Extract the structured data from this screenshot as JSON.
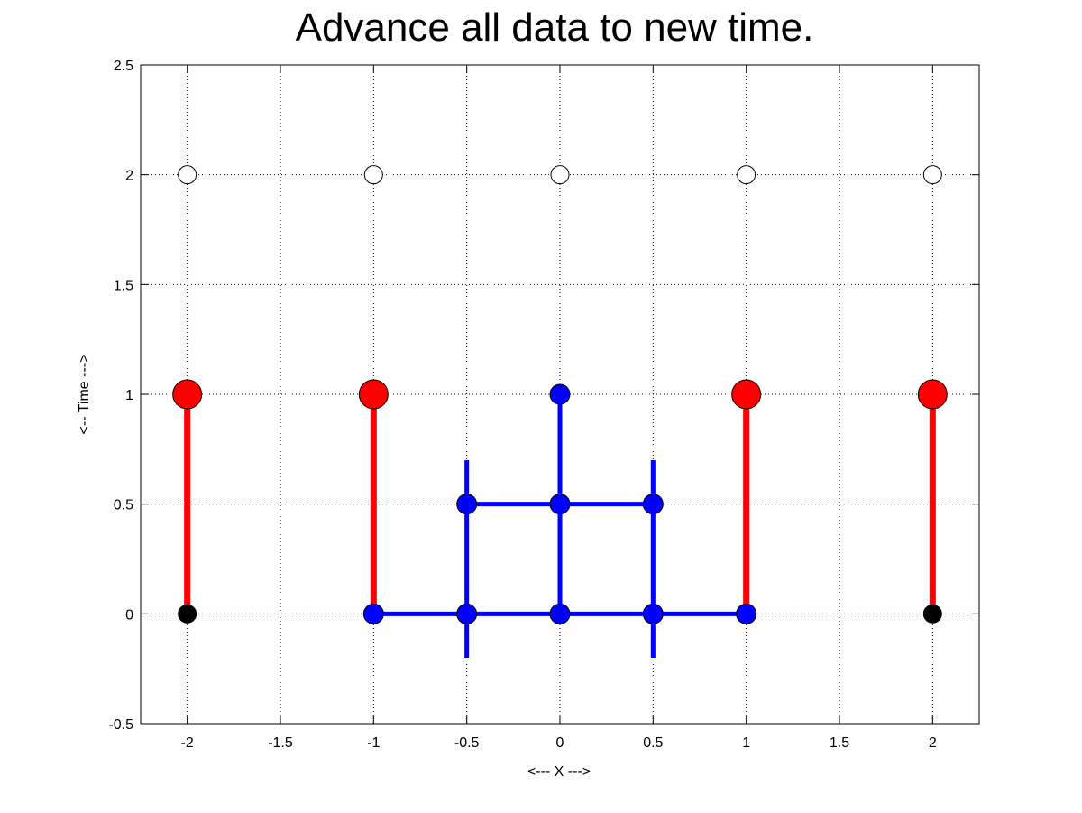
{
  "chart_data": {
    "type": "scatter",
    "title": "Advance all data to new time.",
    "xlabel": "<--- X --->",
    "ylabel": "<-- Time --->",
    "xlim": [
      -2.25,
      2.25
    ],
    "ylim": [
      -0.5,
      2.5
    ],
    "xticks": [
      -2,
      -1.5,
      -1,
      -0.5,
      0,
      0.5,
      1,
      1.5,
      2
    ],
    "xtick_labels": [
      "-2",
      "-1.5",
      "-1",
      "-0.5",
      "0",
      "0.5",
      "1",
      "1.5",
      "2"
    ],
    "yticks": [
      -0.5,
      0,
      0.5,
      1,
      1.5,
      2,
      2.5
    ],
    "ytick_labels": [
      "-0.5",
      "0",
      "0.5",
      "1",
      "1.5",
      "2",
      "2.5"
    ],
    "grid": true,
    "colors": {
      "red": "#ff0000",
      "blue": "#0000ff",
      "black": "#000000",
      "white": "#ffffff"
    },
    "red_segments": [
      {
        "x": [
          -2,
          -2
        ],
        "y": [
          0,
          1
        ]
      },
      {
        "x": [
          -1,
          -1
        ],
        "y": [
          0,
          1
        ]
      },
      {
        "x": [
          1,
          1
        ],
        "y": [
          0,
          1
        ]
      },
      {
        "x": [
          2,
          2
        ],
        "y": [
          0,
          1
        ]
      }
    ],
    "blue_segments": [
      {
        "x": [
          -1,
          1
        ],
        "y": [
          0,
          0
        ]
      },
      {
        "x": [
          -0.5,
          0.5
        ],
        "y": [
          0.5,
          0.5
        ]
      },
      {
        "x": [
          -0.5,
          -0.5
        ],
        "y": [
          -0.2,
          0.7
        ]
      },
      {
        "x": [
          0.5,
          0.5
        ],
        "y": [
          -0.2,
          0.7
        ]
      },
      {
        "x": [
          0,
          0
        ],
        "y": [
          0,
          1
        ]
      }
    ],
    "white_points": {
      "x": [
        -2,
        -1,
        0,
        1,
        2
      ],
      "y": [
        2,
        2,
        2,
        2,
        2
      ]
    },
    "red_points": {
      "x": [
        -2,
        -1,
        1,
        2
      ],
      "y": [
        1,
        1,
        1,
        1
      ]
    },
    "blue_points": {
      "x": [
        -1,
        -0.5,
        0,
        0.5,
        1,
        -0.5,
        0,
        0.5,
        0
      ],
      "y": [
        0,
        0,
        0,
        0,
        0,
        0.5,
        0.5,
        0.5,
        1
      ]
    },
    "black_points": {
      "x": [
        -2,
        2
      ],
      "y": [
        0,
        0
      ]
    }
  }
}
